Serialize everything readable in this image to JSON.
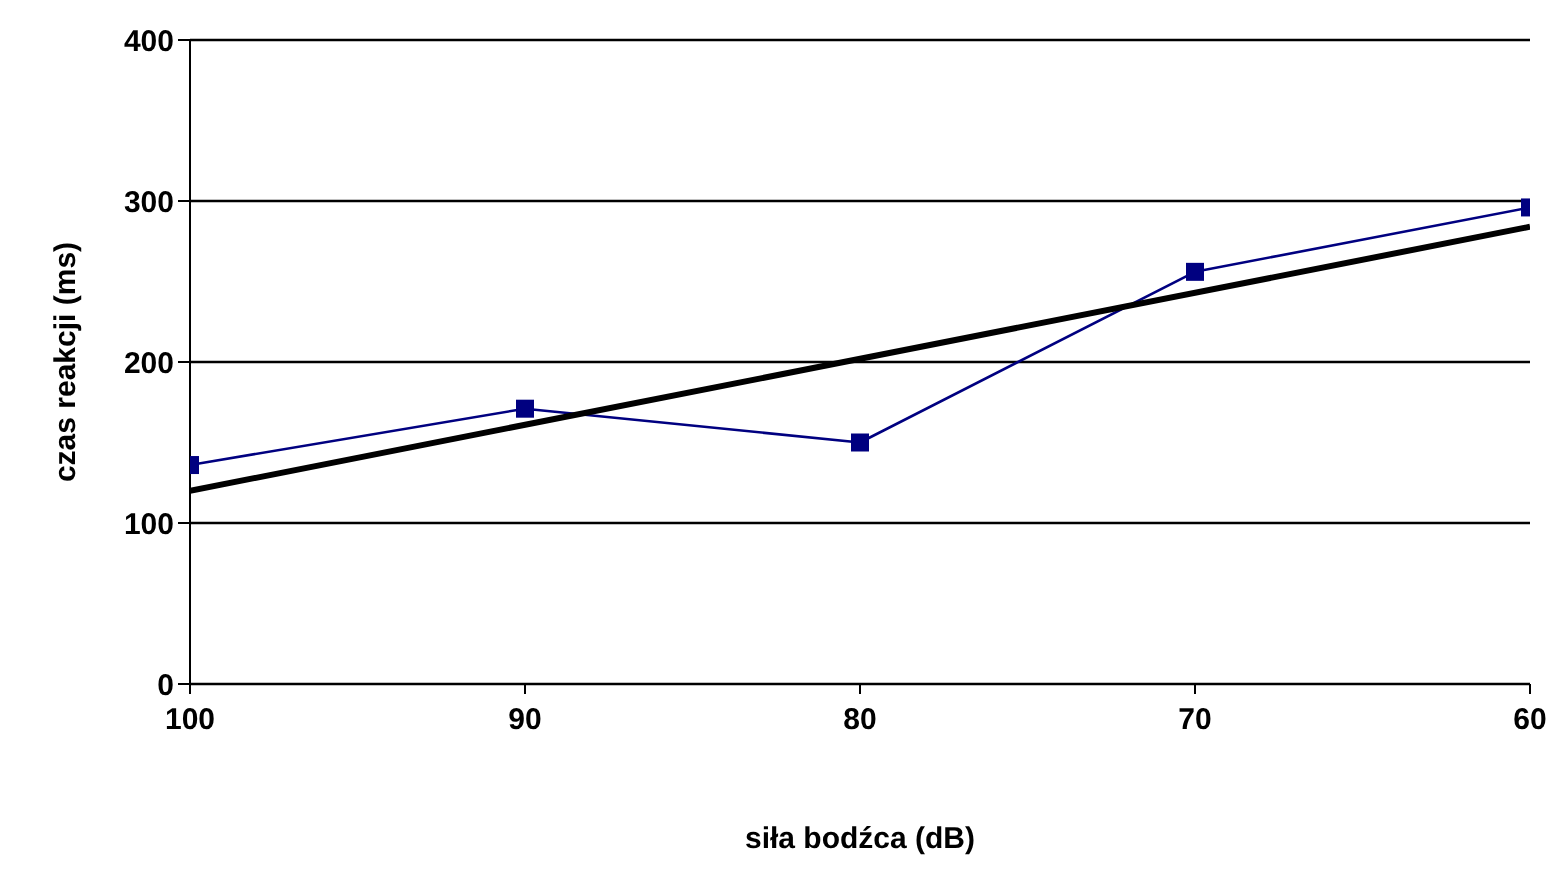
{
  "chart_data": {
    "type": "line",
    "xlabel": "siła bodźca (dB)",
    "ylabel": "czas reakcji (ms)",
    "x": [
      100,
      90,
      80,
      70,
      60
    ],
    "series": [
      {
        "color": "#000080",
        "values": [
          136,
          171,
          150,
          256,
          296
        ],
        "marker": "square"
      },
      {
        "type": "line",
        "color": "#000000",
        "x": [
          100,
          60
        ],
        "values": [
          120,
          284
        ],
        "marker": "none"
      }
    ],
    "xlim": [
      100,
      60
    ],
    "xticks": [
      100,
      90,
      80,
      70,
      60
    ],
    "ylim": [
      0,
      400
    ],
    "yticks": [
      0,
      100,
      200,
      300,
      400
    ],
    "grid": "y"
  }
}
